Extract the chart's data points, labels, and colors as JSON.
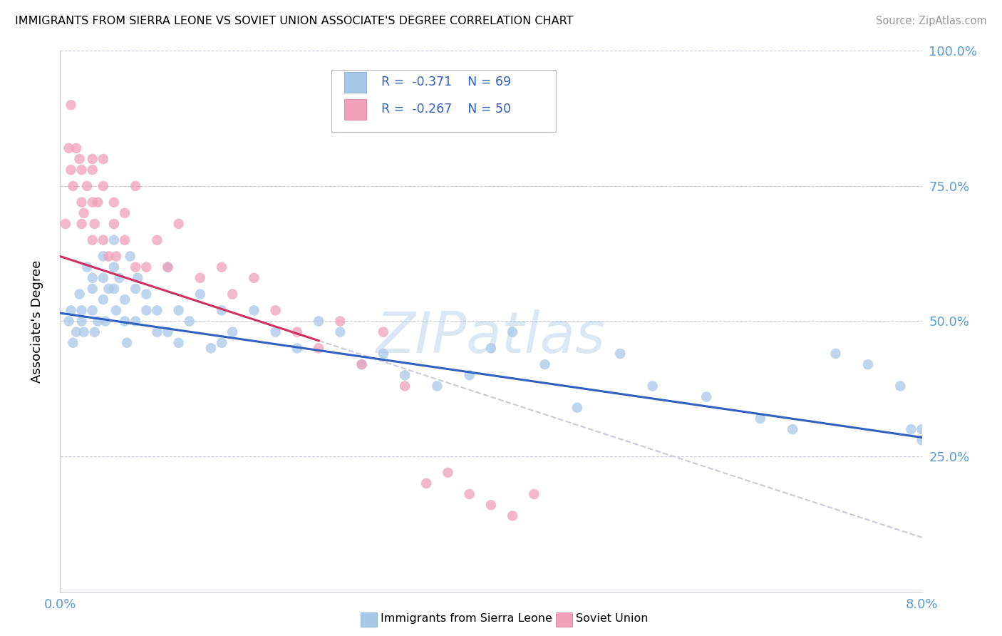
{
  "title": "IMMIGRANTS FROM SIERRA LEONE VS SOVIET UNION ASSOCIATE'S DEGREE CORRELATION CHART",
  "source_text": "Source: ZipAtlas.com",
  "ylabel": "Associate's Degree",
  "xmin": 0.0,
  "xmax": 0.08,
  "ymin": 0.0,
  "ymax": 1.0,
  "blue_color": "#a8c8e8",
  "pink_color": "#f0a0b8",
  "trendline_blue": "#3060c0",
  "trendline_pink": "#d03060",
  "trendline_dashed_color": "#d0c8d8",
  "ytick_color": "#5b9bd5",
  "xtick_color": "#5b9bd5",
  "legend_text_color": "#3060c0",
  "legend_r_color": "#d04080",
  "watermark_color": "#b0cce8",
  "sierra_leone_x": [
    0.0008,
    0.001,
    0.0012,
    0.0015,
    0.0018,
    0.002,
    0.002,
    0.0022,
    0.0025,
    0.003,
    0.003,
    0.003,
    0.0032,
    0.0035,
    0.004,
    0.004,
    0.004,
    0.0042,
    0.0045,
    0.005,
    0.005,
    0.005,
    0.0052,
    0.0055,
    0.006,
    0.006,
    0.0062,
    0.0065,
    0.007,
    0.007,
    0.0072,
    0.008,
    0.008,
    0.009,
    0.009,
    0.01,
    0.01,
    0.011,
    0.011,
    0.012,
    0.013,
    0.014,
    0.015,
    0.015,
    0.016,
    0.018,
    0.02,
    0.022,
    0.024,
    0.026,
    0.028,
    0.03,
    0.032,
    0.035,
    0.038,
    0.04,
    0.042,
    0.045,
    0.048,
    0.052,
    0.055,
    0.06,
    0.065,
    0.068,
    0.072,
    0.075,
    0.078,
    0.079,
    0.08,
    0.08
  ],
  "sierra_leone_y": [
    0.5,
    0.52,
    0.46,
    0.48,
    0.55,
    0.5,
    0.52,
    0.48,
    0.6,
    0.56,
    0.52,
    0.58,
    0.48,
    0.5,
    0.58,
    0.62,
    0.54,
    0.5,
    0.56,
    0.65,
    0.6,
    0.56,
    0.52,
    0.58,
    0.54,
    0.5,
    0.46,
    0.62,
    0.56,
    0.5,
    0.58,
    0.52,
    0.55,
    0.48,
    0.52,
    0.6,
    0.48,
    0.52,
    0.46,
    0.5,
    0.55,
    0.45,
    0.52,
    0.46,
    0.48,
    0.52,
    0.48,
    0.45,
    0.5,
    0.48,
    0.42,
    0.44,
    0.4,
    0.38,
    0.4,
    0.45,
    0.48,
    0.42,
    0.34,
    0.44,
    0.38,
    0.36,
    0.32,
    0.3,
    0.44,
    0.42,
    0.38,
    0.3,
    0.28,
    0.3
  ],
  "soviet_union_x": [
    0.0005,
    0.0008,
    0.001,
    0.001,
    0.0012,
    0.0015,
    0.0018,
    0.002,
    0.002,
    0.002,
    0.0022,
    0.0025,
    0.003,
    0.003,
    0.003,
    0.003,
    0.0032,
    0.0035,
    0.004,
    0.004,
    0.004,
    0.0045,
    0.005,
    0.005,
    0.0052,
    0.006,
    0.006,
    0.007,
    0.007,
    0.008,
    0.009,
    0.01,
    0.011,
    0.013,
    0.015,
    0.016,
    0.018,
    0.02,
    0.022,
    0.024,
    0.026,
    0.028,
    0.03,
    0.032,
    0.034,
    0.036,
    0.038,
    0.04,
    0.042,
    0.044
  ],
  "soviet_union_y": [
    0.68,
    0.82,
    0.78,
    0.9,
    0.75,
    0.82,
    0.8,
    0.72,
    0.78,
    0.68,
    0.7,
    0.75,
    0.8,
    0.65,
    0.72,
    0.78,
    0.68,
    0.72,
    0.75,
    0.8,
    0.65,
    0.62,
    0.72,
    0.68,
    0.62,
    0.7,
    0.65,
    0.75,
    0.6,
    0.6,
    0.65,
    0.6,
    0.68,
    0.58,
    0.6,
    0.55,
    0.58,
    0.52,
    0.48,
    0.45,
    0.5,
    0.42,
    0.48,
    0.38,
    0.2,
    0.22,
    0.18,
    0.16,
    0.14,
    0.18
  ],
  "sl_trendline_x0": 0.0,
  "sl_trendline_y0": 0.515,
  "sl_trendline_x1": 0.08,
  "sl_trendline_y1": 0.285,
  "su_trendline_x0": 0.0,
  "su_trendline_y0": 0.62,
  "su_trendline_x1_solid": 0.024,
  "su_trendline_x1": 0.08,
  "su_trendline_y1": 0.1
}
